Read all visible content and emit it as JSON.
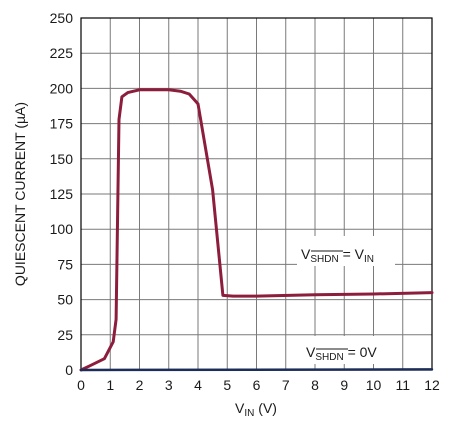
{
  "chart_data": {
    "type": "line",
    "xlabel": {
      "main": "V",
      "sub": "IN",
      "unit": " (V)"
    },
    "ylabel": "QUIESCENT CURRENT (µA)",
    "xlim": [
      0,
      12
    ],
    "ylim": [
      0,
      250
    ],
    "xticks": [
      "0",
      "1",
      "2",
      "3",
      "4",
      "5",
      "6",
      "7",
      "8",
      "9",
      "10",
      "11",
      "12"
    ],
    "yticks": [
      "0",
      "25",
      "50",
      "75",
      "100",
      "125",
      "150",
      "175",
      "200",
      "225",
      "250"
    ],
    "grid": true,
    "series": [
      {
        "name": "VSHDN = VIN",
        "color": "#8c1d3c",
        "points": [
          [
            0,
            0
          ],
          [
            0.3,
            3
          ],
          [
            0.8,
            8
          ],
          [
            1.1,
            20
          ],
          [
            1.2,
            36
          ],
          [
            1.3,
            178
          ],
          [
            1.4,
            194
          ],
          [
            1.6,
            197
          ],
          [
            2,
            199
          ],
          [
            2.5,
            199
          ],
          [
            3,
            199
          ],
          [
            3.4,
            198
          ],
          [
            3.7,
            196
          ],
          [
            4,
            189
          ],
          [
            4.5,
            128
          ],
          [
            4.85,
            53
          ],
          [
            5.2,
            52.5
          ],
          [
            6,
            52.5
          ],
          [
            8,
            53.5
          ],
          [
            10,
            54
          ],
          [
            12,
            55
          ]
        ]
      },
      {
        "name": "VSHDN = 0V",
        "color": "#1c2d5a",
        "points": [
          [
            0,
            0
          ],
          [
            12,
            0.4
          ]
        ]
      }
    ],
    "annotations": [
      {
        "main": "V",
        "sub": "SHDN",
        "rest": " = V",
        "sub2": "IN"
      },
      {
        "main": "V",
        "sub": "SHDN",
        "rest": " = 0V",
        "sub2": ""
      }
    ]
  }
}
